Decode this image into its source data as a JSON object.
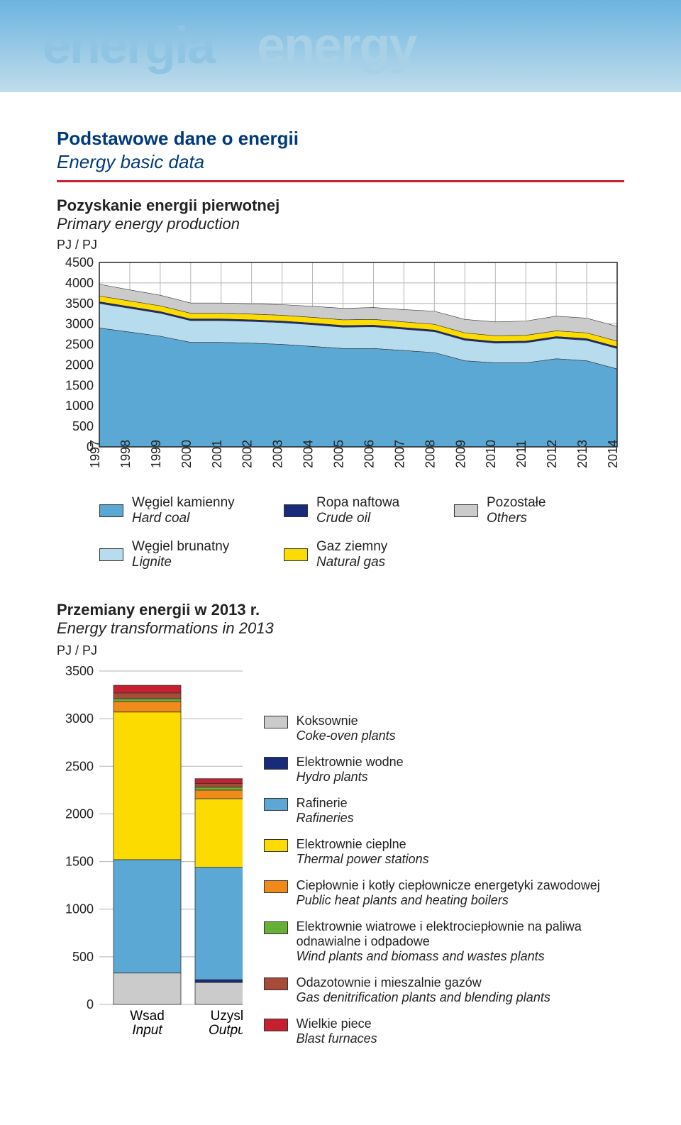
{
  "banner": {
    "t1": "energia",
    "t2": "energy"
  },
  "section": {
    "title": "Podstawowe dane o energii",
    "sub": "Energy basic data"
  },
  "chart1": {
    "title": "Pozyskanie energii pierwotnej",
    "sub": "Primary energy production",
    "unit": "PJ / PJ",
    "ylim": [
      0,
      4500
    ],
    "ytick_step": 500,
    "years": [
      "1997",
      "1998",
      "1999",
      "2000",
      "2001",
      "2002",
      "2003",
      "2004",
      "2005",
      "2006",
      "2007",
      "2008",
      "2009",
      "2010",
      "2011",
      "2012",
      "2013",
      "2014"
    ],
    "colors": {
      "hardcoal": "#5ba8d4",
      "lignite": "#b7dced",
      "crude": "#1a2a7a",
      "gas": "#fcdc00",
      "others": "#cbcbcb",
      "grid": "#b5b5b5",
      "border": "#222"
    },
    "series": {
      "hardcoal": [
        2900,
        2800,
        2700,
        2550,
        2550,
        2530,
        2500,
        2450,
        2400,
        2400,
        2350,
        2300,
        2100,
        2050,
        2050,
        2150,
        2100,
        1900
      ],
      "lignite": [
        600,
        580,
        560,
        530,
        530,
        530,
        530,
        530,
        520,
        530,
        520,
        510,
        500,
        480,
        490,
        500,
        500,
        500
      ],
      "crude": [
        40,
        40,
        40,
        40,
        40,
        40,
        40,
        40,
        40,
        40,
        40,
        40,
        40,
        40,
        40,
        40,
        40,
        40
      ],
      "gas": [
        140,
        140,
        140,
        140,
        140,
        140,
        140,
        140,
        140,
        140,
        140,
        140,
        140,
        140,
        140,
        140,
        140,
        140
      ],
      "others": [
        290,
        270,
        260,
        250,
        250,
        250,
        260,
        270,
        280,
        290,
        300,
        320,
        330,
        340,
        350,
        360,
        360,
        360
      ]
    },
    "legend": [
      {
        "c": "#5ba8d4",
        "pl": "Węgiel kamienny",
        "en": "Hard coal"
      },
      {
        "c": "#1a2a7a",
        "pl": "Ropa naftowa",
        "en": "Crude oil"
      },
      {
        "c": "#cbcbcb",
        "pl": "Pozostałe",
        "en": "Others"
      },
      {
        "c": "#b7dced",
        "pl": "Węgiel brunatny",
        "en": "Lignite"
      },
      {
        "c": "#fcdc00",
        "pl": "Gaz ziemny",
        "en": "Natural gas"
      }
    ]
  },
  "chart2": {
    "title": "Przemiany energii w 2013 r.",
    "sub": "Energy transformations in 2013",
    "unit": "PJ / PJ",
    "ylim": [
      0,
      3500
    ],
    "ytick_step": 500,
    "bars": [
      {
        "label_pl": "Wsad",
        "label_en": "Input",
        "segments": [
          {
            "k": "coke",
            "v": 330
          },
          {
            "k": "raf",
            "v": 1190
          },
          {
            "k": "thermal",
            "v": 1550
          },
          {
            "k": "heat",
            "v": 110
          },
          {
            "k": "wind",
            "v": 30
          },
          {
            "k": "gas",
            "v": 60
          },
          {
            "k": "blast",
            "v": 80
          }
        ]
      },
      {
        "label_pl": "Uzysk",
        "label_en": "Output",
        "segments": [
          {
            "k": "coke",
            "v": 230
          },
          {
            "k": "hydro",
            "v": 30
          },
          {
            "k": "raf",
            "v": 1180
          },
          {
            "k": "thermal",
            "v": 720
          },
          {
            "k": "heat",
            "v": 90
          },
          {
            "k": "wind",
            "v": 30
          },
          {
            "k": "gas",
            "v": 40
          },
          {
            "k": "blast",
            "v": 50
          }
        ]
      }
    ],
    "colors": {
      "coke": "#cbcbcb",
      "hydro": "#1a2a7a",
      "raf": "#5ba8d4",
      "thermal": "#fcdc00",
      "heat": "#f08a1a",
      "wind": "#68b035",
      "gas": "#a64b38",
      "blast": "#c62030"
    },
    "legend": [
      {
        "c": "#cbcbcb",
        "pl": "Koksownie",
        "en": "Coke-oven plants"
      },
      {
        "c": "#1a2a7a",
        "pl": "Elektrownie wodne",
        "en": "Hydro plants"
      },
      {
        "c": "#5ba8d4",
        "pl": "Rafinerie",
        "en": "Rafineries"
      },
      {
        "c": "#fcdc00",
        "pl": "Elektrownie cieplne",
        "en": "Thermal power stations"
      },
      {
        "c": "#f08a1a",
        "pl": "Ciepłownie i kotły ciepłownicze energetyki zawodowej",
        "en": "Public heat plants and heating boilers"
      },
      {
        "c": "#68b035",
        "pl": "Elektrownie wiatrowe i elektrociepłownie na paliwa odnawialne i odpadowe",
        "en": "Wind plants and biomass and wastes plants"
      },
      {
        "c": "#a64b38",
        "pl": "Odazotownie i mieszalnie gazów",
        "en": "Gas denitrification plants and blending plants"
      },
      {
        "c": "#c62030",
        "pl": "Wielkie piece",
        "en": "Blast furnaces"
      }
    ]
  }
}
